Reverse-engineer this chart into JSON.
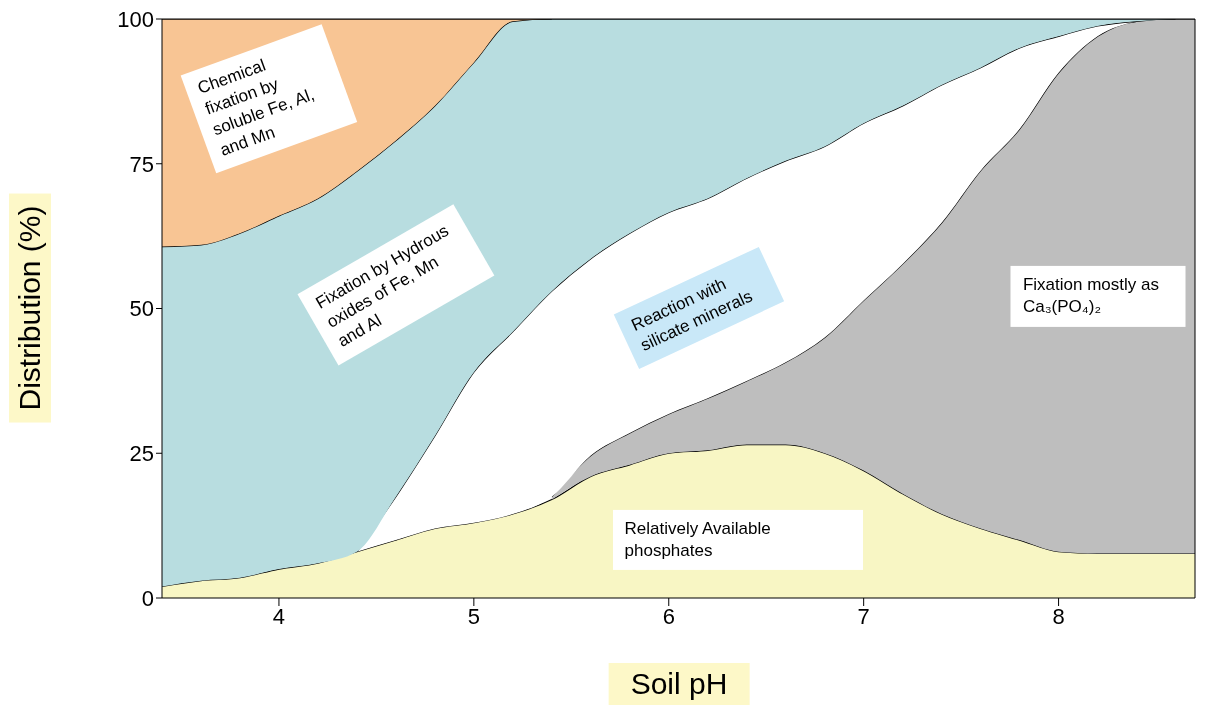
{
  "chart_data": {
    "type": "area",
    "stacked": true,
    "xlabel": "Soil pH",
    "ylabel": "Distribution (%)",
    "x": [
      3.4,
      3.6,
      3.8,
      4.0,
      4.2,
      4.4,
      4.6,
      4.8,
      5.0,
      5.2,
      5.4,
      5.6,
      5.8,
      6.0,
      6.2,
      6.4,
      6.6,
      6.8,
      7.0,
      7.2,
      7.4,
      7.6,
      7.8,
      8.0,
      8.2,
      8.4,
      8.6,
      8.7
    ],
    "series": [
      {
        "name": "Relatively Available phosphates",
        "color": "#f8f6c4",
        "values": [
          2,
          3,
          3.5,
          5,
          6,
          8,
          10,
          12,
          13,
          14.5,
          17,
          21,
          23,
          25,
          25.5,
          26.5,
          26.5,
          25,
          22,
          18,
          14.5,
          12,
          10,
          8,
          7.7,
          7.7,
          7.7,
          7.7
        ]
      },
      {
        "name": "Fixation mostly as Ca₃(PO₄)₂",
        "color": "#bebebe",
        "values": [
          null,
          null,
          null,
          null,
          null,
          null,
          null,
          null,
          null,
          null,
          0.5,
          3.6,
          5.5,
          6.8,
          9,
          11,
          14.2,
          20,
          29.4,
          39.7,
          50.3,
          61.8,
          71,
          82.7,
          89.3,
          91.9,
          92.3,
          92.3
        ]
      },
      {
        "name": "Reaction with silicate minerals",
        "color": "#ffffff",
        "values": [
          null,
          null,
          null,
          null,
          null,
          0,
          7.5,
          16,
          26,
          31.5,
          35.5,
          34,
          34.5,
          34.8,
          34.5,
          35,
          34.8,
          33,
          30.6,
          27.3,
          23.8,
          17.8,
          14,
          6.3,
          1.8,
          0,
          null,
          null
        ]
      },
      {
        "name": "Fixation by Hydrous oxides of Fe, Mn and Al",
        "color": "#b8dde0",
        "values": [
          58.7,
          58,
          59.5,
          61,
          63,
          65.7,
          61.5,
          57,
          53.5,
          53.6,
          47,
          41.4,
          37,
          33.4,
          31,
          27.5,
          24.5,
          22,
          18,
          15,
          11.4,
          8.4,
          5,
          3,
          1.2,
          0.4,
          0,
          null
        ]
      },
      {
        "name": "Chemical fixation by soluble Fe, Al, and Mn",
        "color": "#f8c594",
        "values": [
          39.3,
          39,
          37,
          34,
          31,
          26.3,
          21,
          15,
          7.5,
          0.4,
          0,
          null,
          null,
          null,
          null,
          null,
          null,
          null,
          null,
          null,
          null,
          null,
          null,
          null,
          null,
          null,
          null,
          null
        ]
      }
    ],
    "xlim": [
      3.4,
      8.7
    ],
    "xticks": [
      4,
      5,
      6,
      7,
      8
    ],
    "ylim": [
      0,
      100
    ],
    "yticks": [
      0,
      25,
      50,
      75,
      100
    ],
    "grid": false,
    "legend": false
  }
}
